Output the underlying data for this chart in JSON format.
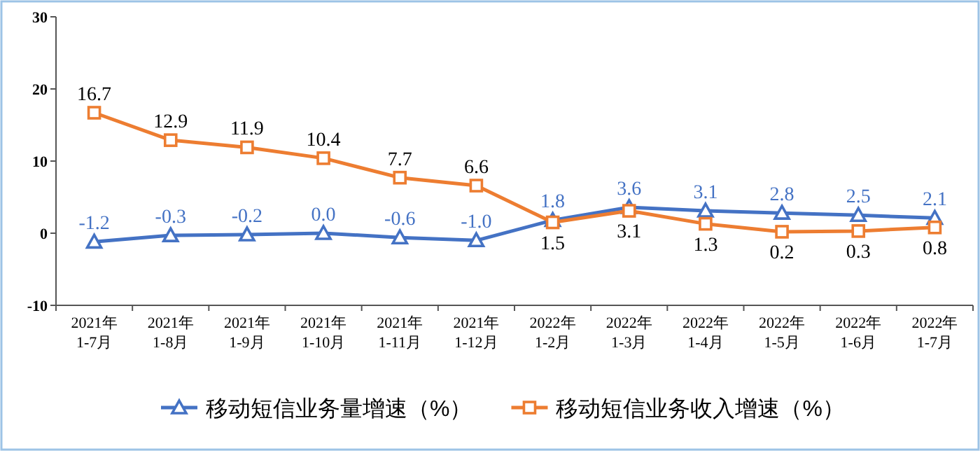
{
  "chart_data": {
    "type": "line",
    "categories": [
      "2021年\n1-7月",
      "2021年\n1-8月",
      "2021年\n1-9月",
      "2021年\n1-10月",
      "2021年\n1-11月",
      "2021年\n1-12月",
      "2022年\n1-2月",
      "2022年\n1-3月",
      "2022年\n1-4月",
      "2022年\n1-5月",
      "2022年\n1-6月",
      "2022年\n1-7月"
    ],
    "series": [
      {
        "name": "移动短信业务量增速（%）",
        "color": "#4472c4",
        "marker": "triangle",
        "values": [
          -1.2,
          -0.3,
          -0.2,
          0.0,
          -0.6,
          -1.0,
          1.8,
          3.6,
          3.1,
          2.8,
          2.5,
          2.1
        ],
        "value_labels": [
          "-1.2",
          "-0.3",
          "-0.2",
          "0.0",
          "-0.6",
          "-1.0",
          "1.8",
          "3.6",
          "3.1",
          "2.8",
          "2.5",
          "2.1"
        ]
      },
      {
        "name": "移动短信业务收入增速（%）",
        "color": "#ed7d31",
        "marker": "square",
        "values": [
          16.7,
          12.9,
          11.9,
          10.4,
          7.7,
          6.6,
          1.5,
          3.1,
          1.3,
          0.2,
          0.3,
          0.8
        ],
        "value_labels": [
          "16.7",
          "12.9",
          "11.9",
          "10.4",
          "7.7",
          "6.6",
          "1.5",
          "3.1",
          "1.3",
          "0.2",
          "0.3",
          "0.8"
        ]
      }
    ],
    "ylim": [
      -10,
      30
    ],
    "yticks": [
      -10,
      0,
      10,
      20,
      30
    ],
    "grid": false,
    "legend": "bottom",
    "line_style": "solid"
  }
}
